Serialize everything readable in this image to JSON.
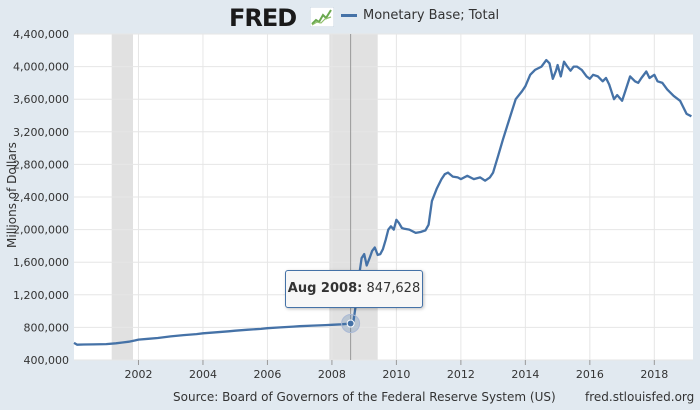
{
  "header": {
    "logo_text": "FRED",
    "logo_icon": "chart-line-icon",
    "legend_label": "Monetary Base; Total",
    "series_color": "#4572a7"
  },
  "footer": {
    "source": "Source: Board of Governors of the Federal Reserve System (US)",
    "url": "fred.stlouisfed.org"
  },
  "tooltip": {
    "date_label": "Aug 2008:",
    "value_label": "847,628"
  },
  "chart_data": {
    "type": "line",
    "title": "",
    "xlabel": "",
    "ylabel": "Millions of Dollars",
    "xlim": [
      2000.0,
      2019.2
    ],
    "ylim": [
      400000,
      4400000
    ],
    "grid": true,
    "legend_position": "top",
    "x_ticks": [
      2002,
      2004,
      2006,
      2008,
      2010,
      2012,
      2014,
      2016,
      2018
    ],
    "x_tick_labels": [
      "2002",
      "2004",
      "2006",
      "2008",
      "2010",
      "2012",
      "2014",
      "2016",
      "2018"
    ],
    "y_ticks": [
      400000,
      800000,
      1200000,
      1600000,
      2000000,
      2400000,
      2800000,
      3200000,
      3600000,
      4000000,
      4400000
    ],
    "y_tick_labels": [
      "400,000",
      "800,000",
      "1,200,000",
      "1,600,000",
      "2,000,000",
      "2,400,000",
      "2,800,000",
      "3,200,000",
      "3,600,000",
      "4,000,000",
      "4,400,000"
    ],
    "recessions": [
      [
        2001.17,
        2001.83
      ],
      [
        2007.92,
        2009.42
      ]
    ],
    "highlight": {
      "x": 2008.58,
      "y": 847628
    },
    "series": [
      {
        "name": "Monetary Base; Total",
        "x": [
          2000.0,
          2000.1,
          2000.3,
          2000.6,
          2001.0,
          2001.3,
          2001.5,
          2001.7,
          2001.9,
          2002.0,
          2002.3,
          2002.6,
          2003.0,
          2003.4,
          2003.8,
          2004.0,
          2004.4,
          2004.8,
          2005.0,
          2005.4,
          2005.8,
          2006.0,
          2006.4,
          2006.8,
          2007.0,
          2007.4,
          2007.8,
          2008.0,
          2008.3,
          2008.58,
          2008.67,
          2008.75,
          2008.83,
          2008.92,
          2009.0,
          2009.08,
          2009.17,
          2009.25,
          2009.33,
          2009.42,
          2009.5,
          2009.58,
          2009.67,
          2009.75,
          2009.83,
          2009.92,
          2010.0,
          2010.08,
          2010.17,
          2010.25,
          2010.4,
          2010.6,
          2010.75,
          2010.9,
          2011.0,
          2011.1,
          2011.25,
          2011.4,
          2011.5,
          2011.6,
          2011.75,
          2011.9,
          2012.0,
          2012.2,
          2012.4,
          2012.6,
          2012.75,
          2012.9,
          2013.0,
          2013.15,
          2013.3,
          2013.5,
          2013.7,
          2013.9,
          2014.0,
          2014.15,
          2014.3,
          2014.5,
          2014.65,
          2014.75,
          2014.85,
          2014.95,
          2015.0,
          2015.1,
          2015.2,
          2015.3,
          2015.4,
          2015.5,
          2015.6,
          2015.75,
          2015.9,
          2016.0,
          2016.1,
          2016.25,
          2016.4,
          2016.5,
          2016.6,
          2016.75,
          2016.85,
          2017.0,
          2017.1,
          2017.25,
          2017.4,
          2017.5,
          2017.6,
          2017.75,
          2017.85,
          2018.0,
          2018.1,
          2018.25,
          2018.4,
          2018.6,
          2018.8,
          2019.0,
          2019.15
        ],
        "values": [
          610000,
          588000,
          590000,
          592000,
          595000,
          605000,
          615000,
          625000,
          640000,
          650000,
          660000,
          670000,
          690000,
          705000,
          718000,
          728000,
          740000,
          752000,
          760000,
          772000,
          782000,
          790000,
          800000,
          810000,
          815000,
          822000,
          828000,
          832000,
          838000,
          847628,
          880000,
          1100000,
          1400000,
          1650000,
          1700000,
          1560000,
          1650000,
          1740000,
          1780000,
          1690000,
          1700000,
          1760000,
          1880000,
          2000000,
          2040000,
          2000000,
          2120000,
          2080000,
          2020000,
          2010000,
          2000000,
          1960000,
          1970000,
          1990000,
          2060000,
          2350000,
          2500000,
          2620000,
          2680000,
          2700000,
          2650000,
          2640000,
          2620000,
          2660000,
          2620000,
          2640000,
          2600000,
          2640000,
          2700000,
          2900000,
          3100000,
          3350000,
          3600000,
          3700000,
          3760000,
          3900000,
          3960000,
          4000000,
          4080000,
          4040000,
          3850000,
          3950000,
          4020000,
          3880000,
          4060000,
          4000000,
          3950000,
          4000000,
          4000000,
          3960000,
          3880000,
          3850000,
          3900000,
          3880000,
          3820000,
          3860000,
          3780000,
          3600000,
          3650000,
          3580000,
          3700000,
          3880000,
          3820000,
          3800000,
          3860000,
          3940000,
          3860000,
          3900000,
          3820000,
          3800000,
          3720000,
          3640000,
          3580000,
          3420000,
          3390000
        ]
      }
    ]
  }
}
